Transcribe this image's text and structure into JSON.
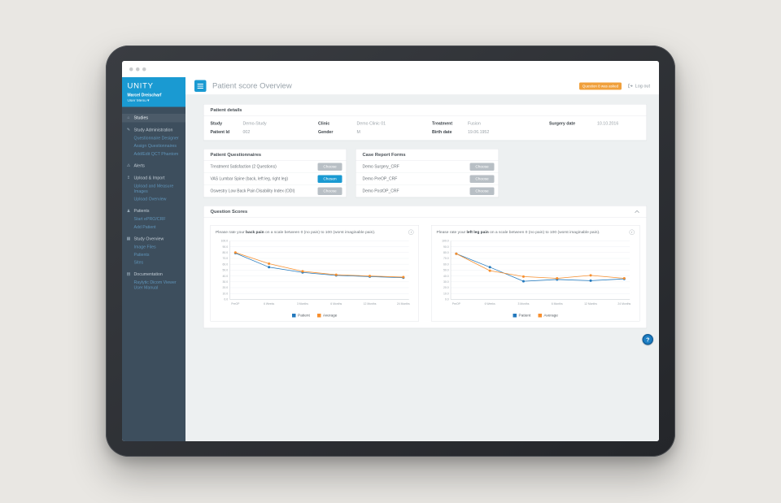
{
  "header": {
    "title": "Patient score Overview",
    "badge": "Question 8 was asked",
    "logout_label": "Log out"
  },
  "sidebar": {
    "logo": "UNITY",
    "user_name": "Marcel Dreischarf",
    "user_menu": "User Menu ▾",
    "items": [
      {
        "label": "Studies",
        "type": "top",
        "icon": "home-icon",
        "active": true
      },
      {
        "label": "Study Administration",
        "type": "top",
        "icon": "pencil-icon"
      },
      {
        "label": "Questionnaire Designer",
        "type": "sub"
      },
      {
        "label": "Assign Questionnaires",
        "type": "sub"
      },
      {
        "label": "Add/Edit QCT Phantom",
        "type": "sub"
      },
      {
        "label": "Alerts",
        "type": "top",
        "icon": "bell-icon"
      },
      {
        "label": "Upload & Import",
        "type": "top",
        "icon": "upload-icon"
      },
      {
        "label": "Upload and Measure Images",
        "type": "sub"
      },
      {
        "label": "Upload Overview",
        "type": "sub"
      },
      {
        "label": "Patients",
        "type": "top",
        "icon": "users-icon"
      },
      {
        "label": "Start ePRO/CRF",
        "type": "sub"
      },
      {
        "label": "Add Patient",
        "type": "sub"
      },
      {
        "label": "Study Overview",
        "type": "top",
        "icon": "chart-icon"
      },
      {
        "label": "Image Files",
        "type": "sub"
      },
      {
        "label": "Patients",
        "type": "sub"
      },
      {
        "label": "Sites",
        "type": "sub"
      },
      {
        "label": "Documentation",
        "type": "top",
        "icon": "book-icon"
      },
      {
        "label": "Raylytic Dicom Viewer User Manual",
        "type": "sub"
      }
    ]
  },
  "patient_details": {
    "title": "Patient details",
    "rows": [
      [
        {
          "label": "Study",
          "value": "Demo-Study"
        },
        {
          "label": "Clinic",
          "value": "Demo Clinic 01"
        },
        {
          "label": "Treatment",
          "value": "Fusion"
        },
        {
          "label": "Surgery date",
          "value": "10.10.2016"
        }
      ],
      [
        {
          "label": "Patient Id",
          "value": "002"
        },
        {
          "label": "Gender",
          "value": "M"
        },
        {
          "label": "Birth date",
          "value": "19.06.1952"
        }
      ]
    ]
  },
  "questionnaires": {
    "title": "Patient Questionnaires",
    "items": [
      {
        "label": "Treatment Satisfaction (2 Questions)",
        "button": "Choose",
        "state": "default"
      },
      {
        "label": "VAS Lumbar Spine (back, left leg, right leg)",
        "button": "Chosen",
        "state": "active"
      },
      {
        "label": "Oswestry Low Back Pain Disability Index (ODI)",
        "button": "Choose",
        "state": "default"
      }
    ]
  },
  "case_report_forms": {
    "title": "Case Report Forms",
    "items": [
      {
        "label": "Demo Surgery_CRF",
        "button": "Choose",
        "state": "default"
      },
      {
        "label": "Demo PreOP_CRF",
        "button": "Choose",
        "state": "default"
      },
      {
        "label": "Demo PostOP_CRF",
        "button": "Choose",
        "state": "default"
      }
    ]
  },
  "question_scores": {
    "title": "Question Scores"
  },
  "help_label": "?",
  "colors": {
    "accent_blue": "#1a9ad2",
    "sidebar": "#3d4e5d",
    "badge_orange": "#f0a03c",
    "series_patient": "#2379bd",
    "series_average": "#f78f2e"
  },
  "chart_data": [
    {
      "type": "line",
      "title_parts": {
        "prefix": "Please rate your ",
        "bold": "back pain",
        "suffix": " on a scale between 0 (no pain) to 100 (worst imaginable pain)."
      },
      "categories": [
        "PreOP",
        "6 Weeks",
        "3 Months",
        "6 Months",
        "12 Months",
        "24 Months"
      ],
      "series": [
        {
          "name": "Patient",
          "color": "#2379bd",
          "values": [
            79,
            55,
            46,
            41,
            39,
            37
          ]
        },
        {
          "name": "Average",
          "color": "#f78f2e",
          "values": [
            80,
            61,
            48,
            42,
            40,
            38
          ]
        }
      ],
      "ylim": [
        0,
        100
      ],
      "ytick_step": 10,
      "grid": true,
      "legend_position": "bottom"
    },
    {
      "type": "line",
      "title_parts": {
        "prefix": "Please rate your ",
        "bold": "left leg pain",
        "suffix": " on a scale between 0 (no pain) to 100 (worst imaginable pain)."
      },
      "categories": [
        "PreOP",
        "6 Weeks",
        "3 Months",
        "6 Months",
        "12 Months",
        "24 Months"
      ],
      "series": [
        {
          "name": "Patient",
          "color": "#2379bd",
          "values": [
            78,
            55,
            31,
            34,
            32,
            35
          ]
        },
        {
          "name": "Average",
          "color": "#f78f2e",
          "values": [
            78,
            49,
            39,
            36,
            41,
            36
          ]
        }
      ],
      "ylim": [
        0,
        100
      ],
      "ytick_step": 10,
      "grid": true,
      "legend_position": "bottom"
    }
  ]
}
